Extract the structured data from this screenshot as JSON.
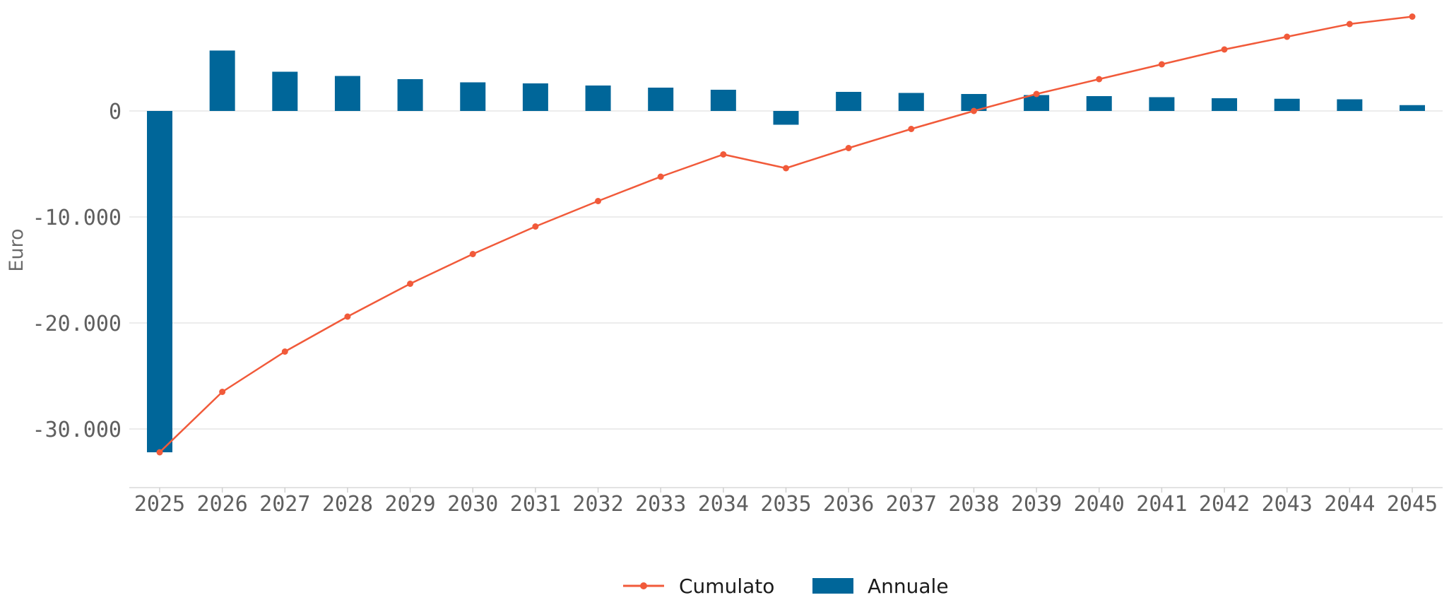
{
  "chart_data": {
    "type": "bar",
    "categories": [
      "2025",
      "2026",
      "2027",
      "2028",
      "2029",
      "2030",
      "2031",
      "2032",
      "2033",
      "2034",
      "2035",
      "2036",
      "2037",
      "2038",
      "2039",
      "2040",
      "2041",
      "2042",
      "2043",
      "2044",
      "2045"
    ],
    "series": [
      {
        "name": "Annuale",
        "type": "bar",
        "color": "#006699",
        "values": [
          -32200,
          5700,
          3700,
          3300,
          3000,
          2700,
          2600,
          2400,
          2200,
          2000,
          -1300,
          1800,
          1700,
          1600,
          1500,
          1400,
          1300,
          1200,
          1150,
          1100,
          550
        ]
      },
      {
        "name": "Cumulato",
        "type": "line",
        "color": "#f15a3a",
        "values": [
          -32200,
          -26500,
          -22700,
          -19400,
          -16300,
          -13500,
          -10900,
          -8500,
          -6200,
          -4100,
          -5400,
          -3500,
          -1700,
          0,
          1600,
          3000,
          4400,
          5800,
          7000,
          8200,
          8900
        ]
      }
    ],
    "ylabel": "Euro",
    "yticks": [
      0,
      -10000,
      -20000,
      -30000
    ],
    "ytick_labels": [
      "0",
      "-10.000",
      "-20.000",
      "-30.000"
    ],
    "ylim": [
      -35500,
      10500
    ],
    "grid": true,
    "legend_position": "bottom-center"
  },
  "legend": {
    "items": [
      {
        "label": "Cumulato",
        "color": "#f15a3a",
        "kind": "line"
      },
      {
        "label": "Annuale",
        "color": "#006699",
        "kind": "bar"
      }
    ]
  }
}
